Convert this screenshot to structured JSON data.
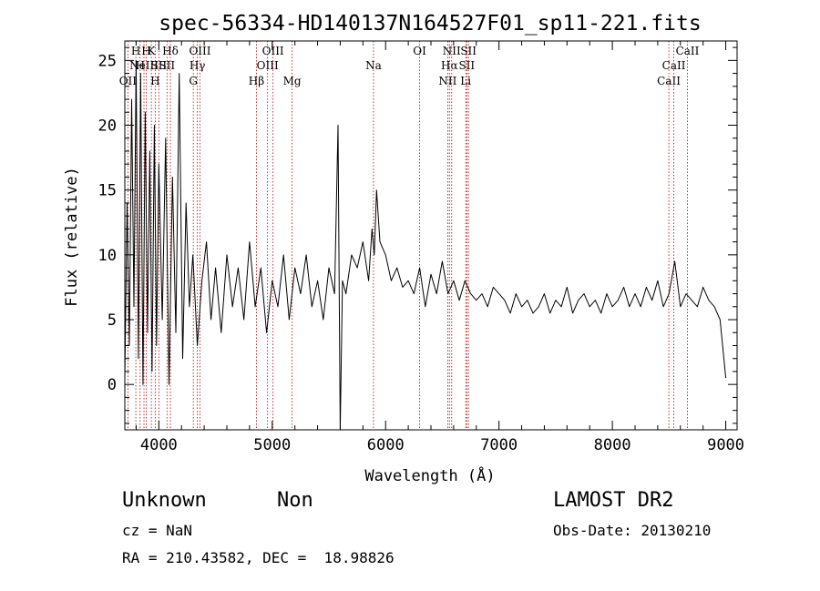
{
  "chart_data": {
    "type": "line",
    "title": "spec-56334-HD140137N164527F01_sp11-221.fits",
    "xlabel": "Wavelength (Å)",
    "ylabel": "Flux (relative)",
    "xlim": [
      3700,
      9100
    ],
    "ylim": [
      -3.5,
      26.5
    ],
    "xticks": [
      4000,
      5000,
      6000,
      7000,
      8000,
      9000
    ],
    "yticks": [
      0,
      5,
      10,
      15,
      20,
      25
    ],
    "grid": false,
    "series": [
      {
        "x": [
          3700,
          3720,
          3740,
          3760,
          3780,
          3800,
          3820,
          3840,
          3860,
          3880,
          3900,
          3920,
          3940,
          3960,
          3980,
          4000,
          4030,
          4060,
          4090,
          4120,
          4150,
          4180,
          4210,
          4240,
          4270,
          4300,
          4340,
          4380,
          4420,
          4460,
          4500,
          4550,
          4600,
          4650,
          4700,
          4750,
          4800,
          4850,
          4900,
          4950,
          5000,
          5050,
          5100,
          5150,
          5200,
          5250,
          5300,
          5350,
          5400,
          5450,
          5500,
          5550,
          5580,
          5600,
          5620,
          5650,
          5700,
          5750,
          5800,
          5850,
          5880,
          5900,
          5920,
          5950,
          6000,
          6050,
          6100,
          6150,
          6200,
          6250,
          6300,
          6350,
          6400,
          6450,
          6500,
          6550,
          6600,
          6650,
          6700,
          6750,
          6800,
          6850,
          6900,
          6950,
          7000,
          7050,
          7100,
          7150,
          7200,
          7250,
          7300,
          7350,
          7400,
          7450,
          7500,
          7550,
          7600,
          7650,
          7700,
          7750,
          7800,
          7850,
          7900,
          7950,
          8000,
          8050,
          8100,
          8150,
          8200,
          8250,
          8300,
          8350,
          8400,
          8450,
          8500,
          8550,
          8600,
          8650,
          8700,
          8750,
          8800,
          8850,
          8900,
          8950,
          9000
        ],
        "y": [
          0.5,
          14,
          3,
          22,
          6,
          25,
          2,
          24,
          0,
          21,
          4,
          18,
          1,
          20,
          3,
          17,
          5,
          19,
          0,
          16,
          4,
          24,
          2,
          14,
          6,
          10,
          3,
          8,
          11,
          5,
          9,
          4,
          10,
          6,
          9,
          5,
          11,
          6,
          9,
          4,
          8,
          6,
          10,
          5,
          9,
          7,
          10,
          6,
          8,
          5,
          9,
          7,
          20,
          -3.5,
          8,
          7,
          10,
          9,
          11,
          8,
          12,
          10,
          15,
          11,
          10,
          8,
          9,
          7.5,
          8,
          7,
          9,
          6,
          8.5,
          7,
          9.5,
          7,
          8,
          6.5,
          8,
          7,
          6.5,
          7,
          6,
          7.5,
          7,
          6.5,
          5.5,
          7,
          6,
          6.5,
          5.5,
          6,
          7,
          5.5,
          6.5,
          6,
          7.5,
          5.5,
          6.5,
          7,
          6,
          6.5,
          5.5,
          7,
          6,
          6.5,
          7.5,
          6,
          7,
          6,
          7.5,
          6.5,
          8,
          6,
          7,
          9.5,
          6,
          7,
          6.5,
          6,
          7.5,
          6.5,
          6,
          5,
          0.5
        ]
      }
    ],
    "lines": [
      {
        "x": 3727,
        "label": "OII",
        "row": 3
      },
      {
        "x": 3797,
        "label": "H",
        "row": 1
      },
      {
        "x": 3835,
        "label": "H",
        "row": 2
      },
      {
        "x": 3869,
        "label": "NeIII",
        "row": 2
      },
      {
        "x": 3889,
        "label": "H",
        "row": 1
      },
      {
        "x": 3934,
        "label": "K",
        "row": 1
      },
      {
        "x": 3968,
        "label": "H",
        "row": 3
      },
      {
        "x": 4000,
        "label": "SII",
        "row": 2
      },
      {
        "x": 4102,
        "label": "Hδ",
        "row": 1
      },
      {
        "x": 4072,
        "label": "SII",
        "row": 2
      },
      {
        "x": 4304,
        "label": "G",
        "row": 3
      },
      {
        "x": 4340,
        "label": "Hγ",
        "row": 2
      },
      {
        "x": 4363,
        "label": "OIII",
        "row": 1
      },
      {
        "x": 4861,
        "label": "Hβ",
        "row": 3
      },
      {
        "x": 4959,
        "label": "OIII",
        "row": 2
      },
      {
        "x": 5007,
        "label": "OIII",
        "row": 1
      },
      {
        "x": 5175,
        "label": "Mg",
        "row": 3
      },
      {
        "x": 5893,
        "label": "Na",
        "row": 2
      },
      {
        "x": 6300,
        "label": "OI",
        "row": 1
      },
      {
        "x": 6548,
        "label": "NII",
        "row": 3
      },
      {
        "x": 6563,
        "label": "Hα",
        "row": 2
      },
      {
        "x": 6583,
        "label": "NII",
        "row": 1
      },
      {
        "x": 6707,
        "label": "Li",
        "row": 3
      },
      {
        "x": 6716,
        "label": "SII",
        "row": 2
      },
      {
        "x": 6731,
        "label": "SII",
        "row": 1
      },
      {
        "x": 8498,
        "label": "CaII",
        "row": 3
      },
      {
        "x": 8542,
        "label": "CaII",
        "row": 2
      },
      {
        "x": 8662,
        "label": "CaII",
        "row": 1
      }
    ]
  },
  "info": {
    "object_class": "Unknown",
    "object_subclass": "Non",
    "survey": "LAMOST DR2",
    "cz": "cz = NaN",
    "obs_date": "Obs-Date: 20130210",
    "radec": "RA = 210.43582, DEC =  18.98826"
  },
  "colors": {
    "spectrum": "#000000",
    "line_markers": "#b00000",
    "background": "#ffffff"
  }
}
